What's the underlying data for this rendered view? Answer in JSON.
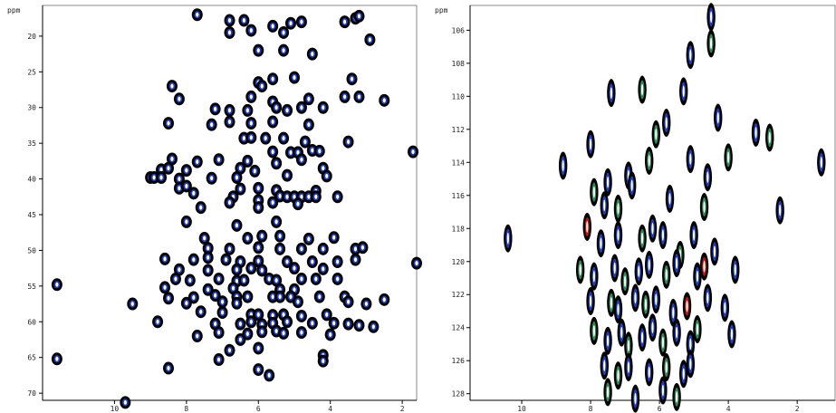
{
  "chart_data": [
    {
      "type": "scatter",
      "subtype": "2D NMR contour spectrum",
      "title": "",
      "ylabel": "ppm",
      "xlabel": "",
      "y_inverted": true,
      "ylim": [
        15.7,
        71.0
      ],
      "xlim": [
        12.0,
        1.6
      ],
      "y_ticks": [
        "20",
        "25",
        "30",
        "35",
        "40",
        "45",
        "50",
        "55",
        "60",
        "65",
        "70"
      ],
      "x_ticks": [
        "10",
        "8",
        "6",
        "4",
        "2"
      ],
      "x_tick_values": [
        10,
        8,
        6,
        4,
        2
      ],
      "colors": {
        "outer": "#000000",
        "inner": "#1f3fbf",
        "fill": "#ffffff"
      },
      "points": [
        [
          7.7,
          17.0
        ],
        [
          6.8,
          17.8
        ],
        [
          6.4,
          17.8
        ],
        [
          5.6,
          18.6
        ],
        [
          5.1,
          18.2
        ],
        [
          4.8,
          18.0
        ],
        [
          3.6,
          18.0
        ],
        [
          3.3,
          17.5
        ],
        [
          3.2,
          17.2
        ],
        [
          6.8,
          19.5
        ],
        [
          6.2,
          19.2
        ],
        [
          5.3,
          19.5
        ],
        [
          2.9,
          20.5
        ],
        [
          6.0,
          22.0
        ],
        [
          5.3,
          22.0
        ],
        [
          4.5,
          22.5
        ],
        [
          8.4,
          27.0
        ],
        [
          6.0,
          26.5
        ],
        [
          5.9,
          27.0
        ],
        [
          5.6,
          26.0
        ],
        [
          5.0,
          25.8
        ],
        [
          3.4,
          26.0
        ],
        [
          8.2,
          28.8
        ],
        [
          6.2,
          28.5
        ],
        [
          5.6,
          29.2
        ],
        [
          4.6,
          28.8
        ],
        [
          3.6,
          28.5
        ],
        [
          3.2,
          28.5
        ],
        [
          2.5,
          29.0
        ],
        [
          7.2,
          30.2
        ],
        [
          6.8,
          30.4
        ],
        [
          6.3,
          30.4
        ],
        [
          5.5,
          30.0
        ],
        [
          5.2,
          30.4
        ],
        [
          4.8,
          30.0
        ],
        [
          4.2,
          30.0
        ],
        [
          8.5,
          32.2
        ],
        [
          7.3,
          32.4
        ],
        [
          6.8,
          32.0
        ],
        [
          6.2,
          32.2
        ],
        [
          5.6,
          32.0
        ],
        [
          4.6,
          32.4
        ],
        [
          6.4,
          34.3
        ],
        [
          6.2,
          34.2
        ],
        [
          5.8,
          34.3
        ],
        [
          5.3,
          34.3
        ],
        [
          4.7,
          34.8
        ],
        [
          3.5,
          34.8
        ],
        [
          5.6,
          36.2
        ],
        [
          5.1,
          36.3
        ],
        [
          4.9,
          36.3
        ],
        [
          4.5,
          36.0
        ],
        [
          4.3,
          36.1
        ],
        [
          1.7,
          36.2
        ],
        [
          8.4,
          37.2
        ],
        [
          7.7,
          37.6
        ],
        [
          7.1,
          37.3
        ],
        [
          6.3,
          37.5
        ],
        [
          5.5,
          37.8
        ],
        [
          4.8,
          37.3
        ],
        [
          8.7,
          38.7
        ],
        [
          8.5,
          38.5
        ],
        [
          8.0,
          38.8
        ],
        [
          6.5,
          38.5
        ],
        [
          6.1,
          38.9
        ],
        [
          4.2,
          38.5
        ],
        [
          9.0,
          39.8
        ],
        [
          8.9,
          39.8
        ],
        [
          8.7,
          39.8
        ],
        [
          8.2,
          40.0
        ],
        [
          7.3,
          39.9
        ],
        [
          6.6,
          39.8
        ],
        [
          5.2,
          39.5
        ],
        [
          4.1,
          39.6
        ],
        [
          8.2,
          41.3
        ],
        [
          8.0,
          41.0
        ],
        [
          6.5,
          41.4
        ],
        [
          6.0,
          41.3
        ],
        [
          5.5,
          41.6
        ],
        [
          4.4,
          41.7
        ],
        [
          7.8,
          42.0
        ],
        [
          6.7,
          42.5
        ],
        [
          5.4,
          42.4
        ],
        [
          5.2,
          42.5
        ],
        [
          5.0,
          42.5
        ],
        [
          4.8,
          42.5
        ],
        [
          4.6,
          42.5
        ],
        [
          4.4,
          42.5
        ],
        [
          3.8,
          42.5
        ],
        [
          6.8,
          43.3
        ],
        [
          6.0,
          43.0
        ],
        [
          5.6,
          43.3
        ],
        [
          4.9,
          43.5
        ],
        [
          7.6,
          44.0
        ],
        [
          6.0,
          44.0
        ],
        [
          8.0,
          46.0
        ],
        [
          6.6,
          46.5
        ],
        [
          5.5,
          46.0
        ],
        [
          7.5,
          48.3
        ],
        [
          6.3,
          48.3
        ],
        [
          5.9,
          48.0
        ],
        [
          5.4,
          48.0
        ],
        [
          4.6,
          48.4
        ],
        [
          3.9,
          48.2
        ],
        [
          7.4,
          49.7
        ],
        [
          6.8,
          49.8
        ],
        [
          6.0,
          49.6
        ],
        [
          5.4,
          49.8
        ],
        [
          4.8,
          49.8
        ],
        [
          4.2,
          49.8
        ],
        [
          3.3,
          49.8
        ],
        [
          3.1,
          49.6
        ],
        [
          8.6,
          51.2
        ],
        [
          7.8,
          51.3
        ],
        [
          7.4,
          51.0
        ],
        [
          6.9,
          51.3
        ],
        [
          6.5,
          51.6
        ],
        [
          6.0,
          51.5
        ],
        [
          5.2,
          51.6
        ],
        [
          4.5,
          51.6
        ],
        [
          3.8,
          51.6
        ],
        [
          3.3,
          51.3
        ],
        [
          1.6,
          51.8
        ],
        [
          8.2,
          52.7
        ],
        [
          7.4,
          52.8
        ],
        [
          6.6,
          52.7
        ],
        [
          6.2,
          52.5
        ],
        [
          5.9,
          52.8
        ],
        [
          5.0,
          52.5
        ],
        [
          4.2,
          52.6
        ],
        [
          8.3,
          54.0
        ],
        [
          7.9,
          54.2
        ],
        [
          7.1,
          54.0
        ],
        [
          6.6,
          54.3
        ],
        [
          6.4,
          54.2
        ],
        [
          5.7,
          54.0
        ],
        [
          5.5,
          54.2
        ],
        [
          4.8,
          54.0
        ],
        [
          4.4,
          54.0
        ],
        [
          3.8,
          54.0
        ],
        [
          11.6,
          54.8
        ],
        [
          8.6,
          55.2
        ],
        [
          7.4,
          55.5
        ],
        [
          6.7,
          55.3
        ],
        [
          5.4,
          55.5
        ],
        [
          5.0,
          55.5
        ],
        [
          8.5,
          56.7
        ],
        [
          7.8,
          56.6
        ],
        [
          7.2,
          56.3
        ],
        [
          6.6,
          56.5
        ],
        [
          6.3,
          56.5
        ],
        [
          5.6,
          56.5
        ],
        [
          5.4,
          56.5
        ],
        [
          5.1,
          56.5
        ],
        [
          4.3,
          56.5
        ],
        [
          3.6,
          56.5
        ],
        [
          2.5,
          56.9
        ],
        [
          9.5,
          57.5
        ],
        [
          8.0,
          57.4
        ],
        [
          7.0,
          57.2
        ],
        [
          6.6,
          57.4
        ],
        [
          4.9,
          57.2
        ],
        [
          3.5,
          57.2
        ],
        [
          3.0,
          57.5
        ],
        [
          7.6,
          58.6
        ],
        [
          7.0,
          58.7
        ],
        [
          6.2,
          59.0
        ],
        [
          6.0,
          59.0
        ],
        [
          5.6,
          59.1
        ],
        [
          5.3,
          59.0
        ],
        [
          4.8,
          59.2
        ],
        [
          4.1,
          59.0
        ],
        [
          8.8,
          60.0
        ],
        [
          7.2,
          60.3
        ],
        [
          6.5,
          60.3
        ],
        [
          6.2,
          60.0
        ],
        [
          5.9,
          60.4
        ],
        [
          5.6,
          60.2
        ],
        [
          5.2,
          60.0
        ],
        [
          4.5,
          60.2
        ],
        [
          3.9,
          60.2
        ],
        [
          3.5,
          60.3
        ],
        [
          3.2,
          60.5
        ],
        [
          6.3,
          61.7
        ],
        [
          5.9,
          61.4
        ],
        [
          5.5,
          61.3
        ],
        [
          5.3,
          61.6
        ],
        [
          4.8,
          61.5
        ],
        [
          2.8,
          60.7
        ],
        [
          7.7,
          62.0
        ],
        [
          7.1,
          61.5
        ],
        [
          6.5,
          62.5
        ],
        [
          4.0,
          61.8
        ],
        [
          6.8,
          64.0
        ],
        [
          6.0,
          63.7
        ],
        [
          4.2,
          64.7
        ],
        [
          11.6,
          65.2
        ],
        [
          8.5,
          66.5
        ],
        [
          7.1,
          65.3
        ],
        [
          6.0,
          66.7
        ],
        [
          4.2,
          65.5
        ],
        [
          5.7,
          67.5
        ],
        [
          9.7,
          71.3
        ]
      ]
    },
    {
      "type": "scatter",
      "subtype": "2D NMR contour spectrum",
      "title": "",
      "ylabel": "ppm",
      "xlabel": "",
      "y_inverted": true,
      "ylim": [
        104.5,
        128.4
      ],
      "xlim": [
        11.5,
        0.9
      ],
      "y_ticks": [
        "106",
        "108",
        "110",
        "112",
        "114",
        "116",
        "118",
        "120",
        "122",
        "124",
        "126",
        "128"
      ],
      "x_ticks": [
        "10",
        "8",
        "6",
        "4",
        "2"
      ],
      "x_tick_values": [
        10,
        8,
        6,
        4,
        2
      ],
      "colors": {
        "outer": "#000000",
        "inner": "#1f3fbf",
        "accent": "#2e8b57",
        "highlight": "#cc1111",
        "fill": "#ffffff"
      },
      "points": [
        [
          4.5,
          105.2
        ],
        [
          4.5,
          106.8
        ],
        [
          5.1,
          107.5
        ],
        [
          7.4,
          109.8
        ],
        [
          6.5,
          109.6
        ],
        [
          5.3,
          109.7
        ],
        [
          8.0,
          112.9
        ],
        [
          6.1,
          112.3
        ],
        [
          5.8,
          111.6
        ],
        [
          3.2,
          112.2
        ],
        [
          2.8,
          112.5
        ],
        [
          4.3,
          111.3
        ],
        [
          8.8,
          114.2
        ],
        [
          7.9,
          115.8
        ],
        [
          7.5,
          115.2
        ],
        [
          6.9,
          114.8
        ],
        [
          6.3,
          113.9
        ],
        [
          5.1,
          113.8
        ],
        [
          4.6,
          114.9
        ],
        [
          4.0,
          113.7
        ],
        [
          1.3,
          114.0
        ],
        [
          7.6,
          116.6
        ],
        [
          7.2,
          116.8
        ],
        [
          6.8,
          115.4
        ],
        [
          5.7,
          116.2
        ],
        [
          4.7,
          116.7
        ],
        [
          2.5,
          116.9
        ],
        [
          10.4,
          118.6
        ],
        [
          8.1,
          117.9
        ],
        [
          7.7,
          118.9
        ],
        [
          7.2,
          118.4
        ],
        [
          6.5,
          118.6
        ],
        [
          6.2,
          118.0
        ],
        [
          5.9,
          118.4
        ],
        [
          5.4,
          119.6
        ],
        [
          5.0,
          118.4
        ],
        [
          4.4,
          119.4
        ],
        [
          8.3,
          120.5
        ],
        [
          7.9,
          120.9
        ],
        [
          7.3,
          120.4
        ],
        [
          7.0,
          121.2
        ],
        [
          6.6,
          120.6
        ],
        [
          6.3,
          120.2
        ],
        [
          5.8,
          120.8
        ],
        [
          5.5,
          120.1
        ],
        [
          4.9,
          120.9
        ],
        [
          4.7,
          120.3
        ],
        [
          3.8,
          120.5
        ],
        [
          8.0,
          122.4
        ],
        [
          7.4,
          122.5
        ],
        [
          7.2,
          122.9
        ],
        [
          6.7,
          122.2
        ],
        [
          6.4,
          122.6
        ],
        [
          6.1,
          122.3
        ],
        [
          5.6,
          123.1
        ],
        [
          5.2,
          122.7
        ],
        [
          4.6,
          122.2
        ],
        [
          4.1,
          122.8
        ],
        [
          7.9,
          124.2
        ],
        [
          7.5,
          124.8
        ],
        [
          7.1,
          124.3
        ],
        [
          6.9,
          125.1
        ],
        [
          6.5,
          124.6
        ],
        [
          6.2,
          124.0
        ],
        [
          5.9,
          124.9
        ],
        [
          5.5,
          124.3
        ],
        [
          5.1,
          125.0
        ],
        [
          4.9,
          124.1
        ],
        [
          3.9,
          124.4
        ],
        [
          7.6,
          126.3
        ],
        [
          7.2,
          126.9
        ],
        [
          6.9,
          126.4
        ],
        [
          6.3,
          126.7
        ],
        [
          5.8,
          126.4
        ],
        [
          5.3,
          126.8
        ],
        [
          5.1,
          126.2
        ],
        [
          7.5,
          127.9
        ],
        [
          6.7,
          128.3
        ],
        [
          5.9,
          127.8
        ],
        [
          5.5,
          128.2
        ]
      ]
    }
  ],
  "panels": [
    {
      "ylabel": "ppm"
    },
    {
      "ylabel": "ppm"
    }
  ]
}
